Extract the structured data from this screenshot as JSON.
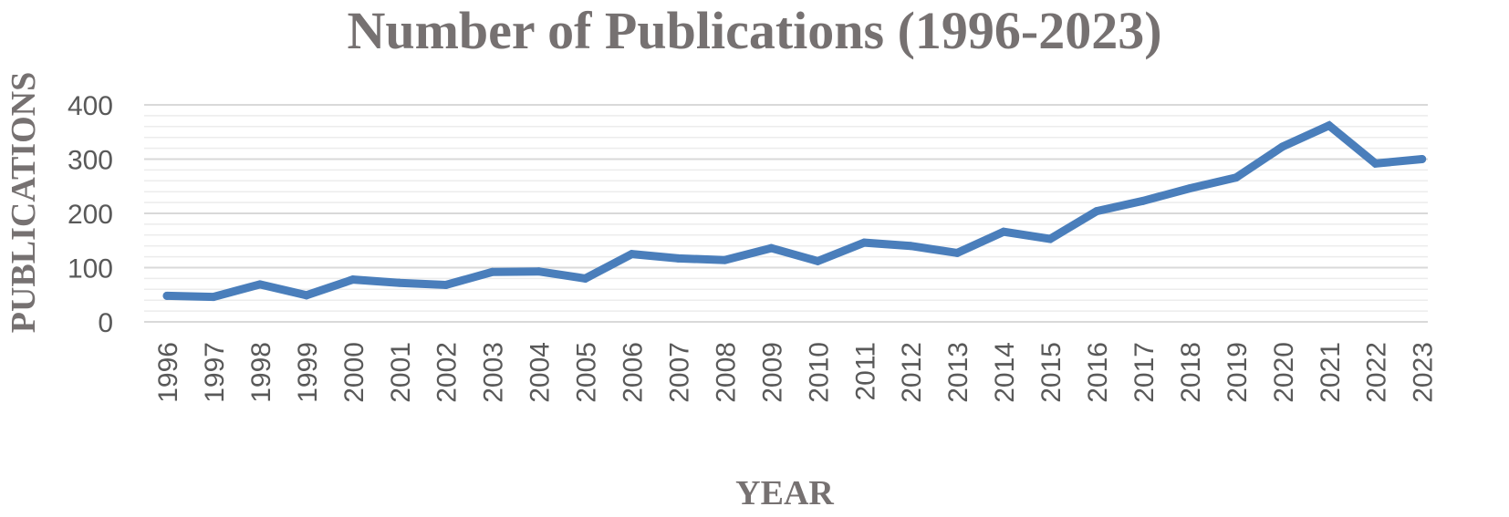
{
  "chart_data": {
    "type": "line",
    "title": "Number of Publications (1996-2023)",
    "xlabel": "YEAR",
    "ylabel": "PUBLICATIONS",
    "categories": [
      "1996",
      "1997",
      "1998",
      "1999",
      "2000",
      "2001",
      "2002",
      "2003",
      "2004",
      "2005",
      "2006",
      "2007",
      "2008",
      "2009",
      "2010",
      "2011",
      "2012",
      "2013",
      "2014",
      "2015",
      "2016",
      "2017",
      "2018",
      "2019",
      "2020",
      "2021",
      "2022",
      "2023"
    ],
    "series": [
      {
        "values": [
          48,
          46,
          69,
          49,
          78,
          72,
          68,
          92,
          93,
          80,
          125,
          117,
          114,
          136,
          112,
          146,
          140,
          127,
          166,
          153,
          204,
          223,
          246,
          266,
          323,
          362,
          292,
          300
        ]
      }
    ],
    "yticks": [
      "0",
      "100",
      "200",
      "300",
      "400"
    ],
    "ylim": [
      0,
      400
    ],
    "minor_grid_step": 20,
    "grid": true,
    "legend": "none"
  },
  "colors": {
    "line": "#4a7ebb",
    "text": "#767171",
    "tick_text": "#595959",
    "grid_major": "#d9d9d9",
    "grid_minor": "#ececec"
  }
}
